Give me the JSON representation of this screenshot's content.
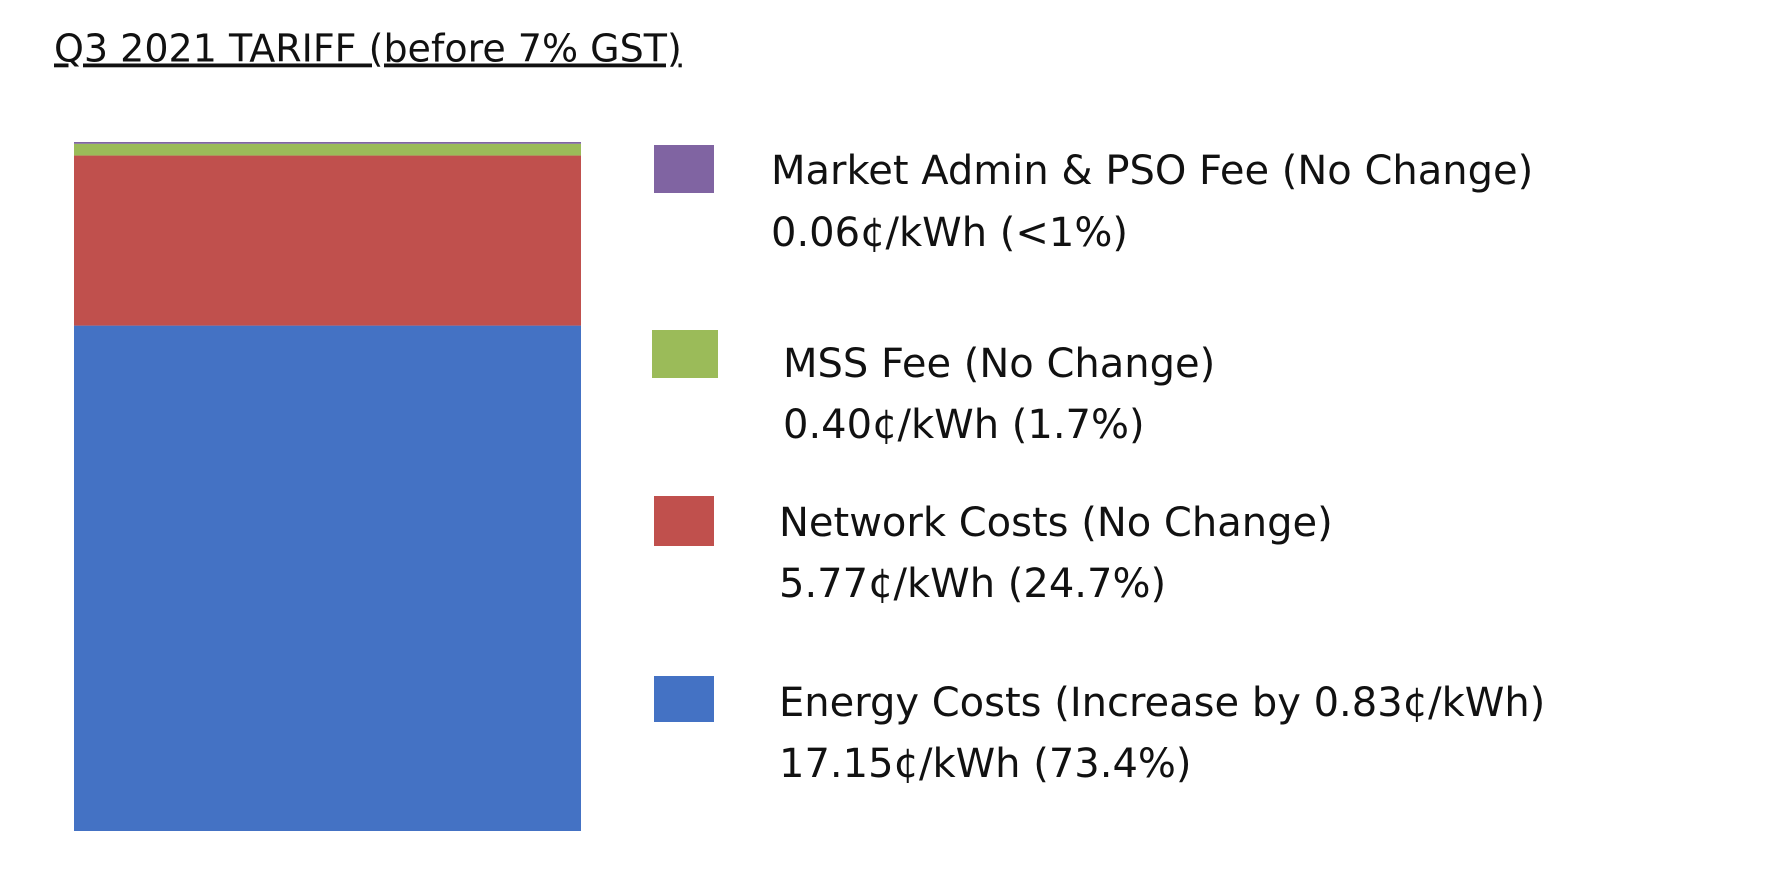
{
  "chart_data": {
    "type": "stacked-bar",
    "title": "Q3 2021 TARIFF (before 7% GST)",
    "series": [
      {
        "name": "Energy Costs (Increase by 0.83¢/kWh)",
        "color": "#4472c4",
        "values": [
          17.15
        ],
        "value_labels": [
          "17.15¢/kWh (73.4%)"
        ]
      },
      {
        "name": "Network Costs (No Change)",
        "color": "#c0504d",
        "values": [
          5.77
        ],
        "value_labels": [
          "5.77¢/kWh (24.7%)"
        ]
      },
      {
        "name": "MSS Fee (No Change)",
        "color": "#9bbb59",
        "values": [
          0.4
        ],
        "value_labels": [
          "0.40¢/kWh (1.7%)"
        ]
      },
      {
        "name": "Market Admin & PSO Fee (No Change)",
        "color": "#8064a2",
        "values": [
          0.06
        ],
        "value_labels": [
          "0.06¢/kWh (<1%)"
        ]
      }
    ]
  }
}
